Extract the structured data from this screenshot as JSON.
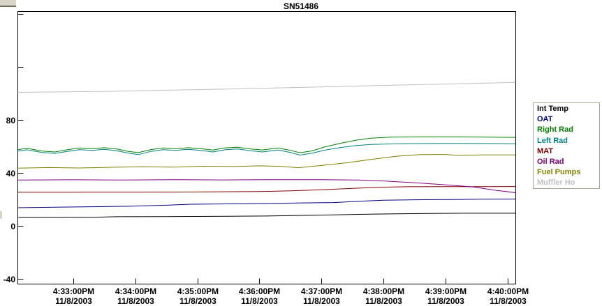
{
  "window": {
    "background": "#ffffff"
  },
  "chart_data": {
    "type": "line",
    "title": "SN51486",
    "x_unit": "minutes after 4:33:00 PM on 11/8/2003",
    "xlim": [
      -0.9,
      7.14
    ],
    "ylim": [
      -45,
      163
    ],
    "grid": false,
    "legend_position": "right",
    "x_axis": {
      "ticks": [
        {
          "t": 0,
          "time": "4:33:00PM",
          "date": "11/8/2003"
        },
        {
          "t": 1,
          "time": "4:34:00PM",
          "date": "11/8/2003"
        },
        {
          "t": 2,
          "time": "4:35:00PM",
          "date": "11/8/2003"
        },
        {
          "t": 3,
          "time": "4:36:00PM",
          "date": "11/8/2003"
        },
        {
          "t": 4,
          "time": "4:37:00PM",
          "date": "11/8/2003"
        },
        {
          "t": 5,
          "time": "4:38:00PM",
          "date": "11/8/2003"
        },
        {
          "t": 6,
          "time": "4:39:00PM",
          "date": "11/8/2003"
        },
        {
          "t": 7,
          "time": "4:40:00PM",
          "date": "11/8/2003"
        }
      ]
    },
    "y_axis": {
      "ticks": [
        {
          "value": 160,
          "label": ""
        },
        {
          "value": 120,
          "label": ""
        },
        {
          "value": 80,
          "label": "80"
        },
        {
          "value": 40,
          "label": "40"
        },
        {
          "value": 0,
          "label": "0"
        },
        {
          "value": -40,
          "label": "-40"
        }
      ]
    },
    "series": [
      {
        "name": "int-temp",
        "label": "Int Temp",
        "color": "#000000",
        "points": [
          [
            -0.9,
            6.3
          ],
          [
            0.3,
            6.4
          ],
          [
            0.7,
            6.9
          ],
          [
            1.5,
            7.0
          ],
          [
            2.5,
            7.2
          ],
          [
            3.2,
            7.5
          ],
          [
            4.0,
            8.1
          ],
          [
            4.6,
            8.7
          ],
          [
            5.2,
            9.1
          ],
          [
            5.9,
            9.4
          ],
          [
            6.3,
            9.5
          ],
          [
            7.14,
            9.5
          ]
        ]
      },
      {
        "name": "oat",
        "label": "OAT",
        "color": "#000080",
        "points": [
          [
            -0.9,
            13.7
          ],
          [
            -0.3,
            14.1
          ],
          [
            0.3,
            14.4
          ],
          [
            0.9,
            14.8
          ],
          [
            1.5,
            15.6
          ],
          [
            1.9,
            16.3
          ],
          [
            2.5,
            16.6
          ],
          [
            3.1,
            16.9
          ],
          [
            3.7,
            17.3
          ],
          [
            4.2,
            17.6
          ],
          [
            4.6,
            18.6
          ],
          [
            5.0,
            19.3
          ],
          [
            5.5,
            19.7
          ],
          [
            6.1,
            19.9
          ],
          [
            6.6,
            20.1
          ],
          [
            7.14,
            20.2
          ]
        ]
      },
      {
        "name": "right-rad",
        "label": "Right Rad",
        "color": "#008000",
        "points": [
          [
            -0.9,
            57.5
          ],
          [
            -0.75,
            58.5
          ],
          [
            -0.5,
            56.5
          ],
          [
            -0.3,
            55.8
          ],
          [
            -0.1,
            57.4
          ],
          [
            0.1,
            58.8
          ],
          [
            0.3,
            58.2
          ],
          [
            0.5,
            59.0
          ],
          [
            0.7,
            58.0
          ],
          [
            0.9,
            56.1
          ],
          [
            1.05,
            55.3
          ],
          [
            1.25,
            57.6
          ],
          [
            1.45,
            58.8
          ],
          [
            1.65,
            58.2
          ],
          [
            1.85,
            59.0
          ],
          [
            2.05,
            58.3
          ],
          [
            2.25,
            57.2
          ],
          [
            2.45,
            58.9
          ],
          [
            2.65,
            59.3
          ],
          [
            2.85,
            58.1
          ],
          [
            3.05,
            57.3
          ],
          [
            3.3,
            58.8
          ],
          [
            3.5,
            57.0
          ],
          [
            3.65,
            55.2
          ],
          [
            3.85,
            56.6
          ],
          [
            4.05,
            59.5
          ],
          [
            4.3,
            62.2
          ],
          [
            4.55,
            64.6
          ],
          [
            4.8,
            66.2
          ],
          [
            5.1,
            67.0
          ],
          [
            5.6,
            67.2
          ],
          [
            6.2,
            67.2
          ],
          [
            6.7,
            67.0
          ],
          [
            7.14,
            66.8
          ]
        ]
      },
      {
        "name": "left-rad",
        "label": "Left Rad",
        "color": "#008080",
        "points": [
          [
            -0.9,
            56.4
          ],
          [
            -0.75,
            57.4
          ],
          [
            -0.5,
            55.4
          ],
          [
            -0.3,
            54.7
          ],
          [
            -0.1,
            56.2
          ],
          [
            0.1,
            57.5
          ],
          [
            0.3,
            57.0
          ],
          [
            0.5,
            57.8
          ],
          [
            0.7,
            56.7
          ],
          [
            0.9,
            54.8
          ],
          [
            1.05,
            53.8
          ],
          [
            1.25,
            56.2
          ],
          [
            1.45,
            57.5
          ],
          [
            1.65,
            57.0
          ],
          [
            1.85,
            57.8
          ],
          [
            2.05,
            57.0
          ],
          [
            2.25,
            55.8
          ],
          [
            2.45,
            57.5
          ],
          [
            2.65,
            58.0
          ],
          [
            2.85,
            56.8
          ],
          [
            3.05,
            55.8
          ],
          [
            3.3,
            57.3
          ],
          [
            3.5,
            55.4
          ],
          [
            3.65,
            53.4
          ],
          [
            3.85,
            54.9
          ],
          [
            4.05,
            57.1
          ],
          [
            4.3,
            59.1
          ],
          [
            4.55,
            60.6
          ],
          [
            4.8,
            61.5
          ],
          [
            5.2,
            62.0
          ],
          [
            6.0,
            62.2
          ],
          [
            6.8,
            62.1
          ],
          [
            7.14,
            62.0
          ]
        ]
      },
      {
        "name": "mat",
        "label": "MAT",
        "color": "#800000",
        "points": [
          [
            -0.9,
            25.4
          ],
          [
            0.0,
            25.4
          ],
          [
            1.0,
            25.5
          ],
          [
            2.0,
            25.6
          ],
          [
            3.0,
            25.9
          ],
          [
            3.5,
            26.4
          ],
          [
            4.0,
            27.2
          ],
          [
            4.5,
            28.3
          ],
          [
            5.0,
            29.2
          ],
          [
            5.4,
            29.5
          ],
          [
            6.0,
            29.6
          ],
          [
            6.6,
            29.6
          ],
          [
            7.14,
            29.7
          ]
        ]
      },
      {
        "name": "oil-rad",
        "label": "Oil Rad",
        "color": "#800080",
        "points": [
          [
            -0.9,
            34.6
          ],
          [
            0.0,
            34.8
          ],
          [
            0.8,
            34.6
          ],
          [
            1.6,
            34.9
          ],
          [
            2.4,
            34.7
          ],
          [
            3.2,
            34.9
          ],
          [
            4.0,
            34.9
          ],
          [
            4.6,
            34.6
          ],
          [
            5.0,
            33.9
          ],
          [
            5.5,
            32.6
          ],
          [
            6.0,
            31.0
          ],
          [
            6.44,
            29.4
          ],
          [
            6.8,
            26.9
          ],
          [
            7.14,
            25.0
          ]
        ]
      },
      {
        "name": "fuel-pumps",
        "label": "Fuel Pumps",
        "color": "#808000",
        "points": [
          [
            -0.9,
            43.5
          ],
          [
            -0.4,
            44.0
          ],
          [
            0.1,
            43.7
          ],
          [
            0.6,
            44.2
          ],
          [
            1.1,
            44.6
          ],
          [
            1.6,
            44.3
          ],
          [
            2.1,
            45.0
          ],
          [
            2.6,
            44.8
          ],
          [
            3.0,
            45.3
          ],
          [
            3.35,
            44.9
          ],
          [
            3.63,
            43.9
          ],
          [
            4.0,
            45.6
          ],
          [
            4.4,
            47.6
          ],
          [
            4.8,
            50.1
          ],
          [
            5.2,
            52.5
          ],
          [
            5.6,
            53.8
          ],
          [
            6.0,
            53.9
          ],
          [
            6.2,
            53.2
          ],
          [
            6.6,
            53.6
          ],
          [
            7.14,
            53.5
          ]
        ]
      },
      {
        "name": "muffler",
        "label": "Muffler Ho",
        "color": "#c0c0c0",
        "points": [
          [
            -0.9,
            100.8
          ],
          [
            0.5,
            101.5
          ],
          [
            1.5,
            102.4
          ],
          [
            2.5,
            103.3
          ],
          [
            3.5,
            104.3
          ],
          [
            4.5,
            105.5
          ],
          [
            5.5,
            106.6
          ],
          [
            6.5,
            107.6
          ],
          [
            7.14,
            108.3
          ]
        ]
      }
    ]
  },
  "legend": {
    "border_color": "#aaa591",
    "background": "#ffffff"
  }
}
